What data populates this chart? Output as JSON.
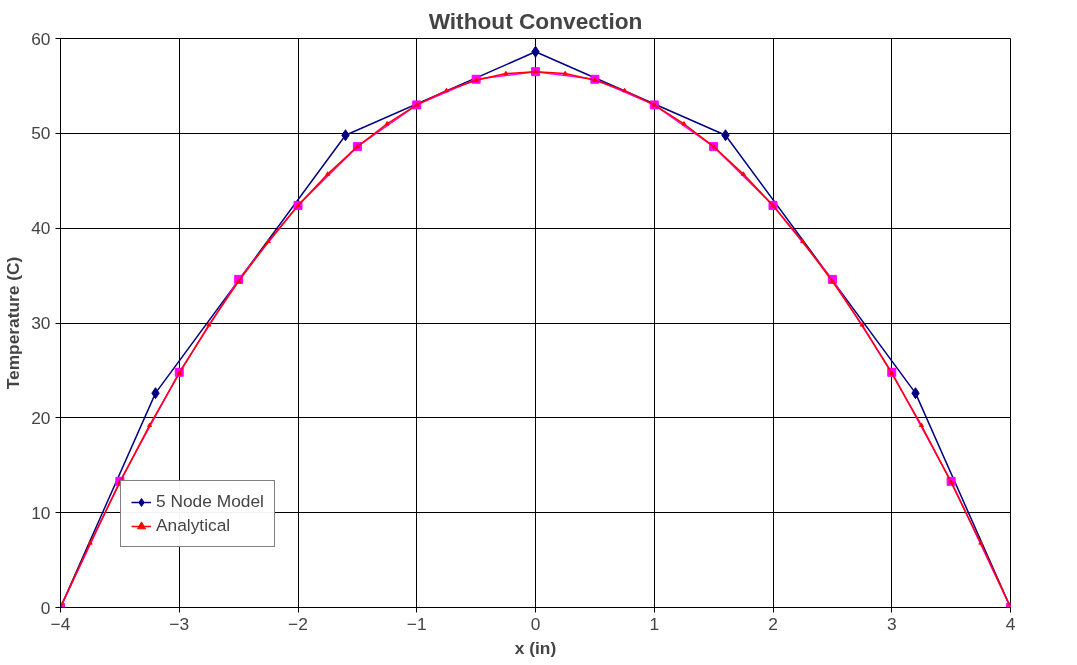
{
  "chart_data": {
    "type": "line",
    "title": "Without Convection",
    "xlabel": "x (in)",
    "ylabel": "Temperature (C)",
    "xlim": [
      -4,
      4
    ],
    "xticks": [
      -4,
      -3,
      -2,
      -1,
      0,
      1,
      2,
      3,
      4
    ],
    "ylim": [
      0,
      60
    ],
    "yticks": [
      0,
      10,
      20,
      30,
      40,
      50,
      60
    ],
    "grid": true,
    "legend": "bottom left",
    "series": [
      {
        "name": "5 Node Model",
        "color": "#000080",
        "marker": "diamond",
        "x": [
          -4,
          -3.2,
          -1.6,
          0,
          1.6,
          3.2,
          4
        ],
        "values": [
          0,
          22.6,
          49.8,
          58.6,
          49.8,
          22.6,
          0
        ]
      },
      {
        "color": "#ff00ff",
        "marker": "square",
        "x": [
          -4,
          -3.5,
          -3,
          -2.5,
          -2,
          -1.5,
          -1,
          -0.5,
          0,
          0.5,
          1,
          1.5,
          2,
          2.5,
          3,
          3.5,
          4
        ],
        "values": [
          0,
          13.3,
          24.8,
          34.6,
          42.4,
          48.6,
          53.0,
          55.7,
          56.5,
          55.7,
          53.0,
          48.6,
          42.4,
          34.6,
          24.8,
          13.3,
          0
        ]
      },
      {
        "name": "Analytical",
        "color": "#ff0000",
        "marker": "triangle",
        "x": [
          -4,
          -3.75,
          -3.5,
          -3.25,
          -3,
          -2.75,
          -2.5,
          -2.25,
          -2,
          -1.75,
          -1.5,
          -1.25,
          -1,
          -0.75,
          -0.5,
          -0.25,
          0,
          0.25,
          0.5,
          0.75,
          1,
          1.25,
          1.5,
          1.75,
          2,
          2.25,
          2.5,
          2.75,
          3,
          3.25,
          3.5,
          3.75,
          4
        ],
        "values": [
          0,
          6.8,
          13.2,
          19.2,
          24.7,
          29.8,
          34.4,
          38.6,
          42.4,
          45.7,
          48.6,
          51.0,
          53.0,
          54.5,
          55.6,
          56.3,
          56.5,
          56.3,
          55.6,
          54.5,
          53.0,
          51.0,
          48.6,
          45.7,
          42.4,
          38.6,
          34.4,
          29.8,
          24.7,
          19.2,
          13.2,
          6.8,
          0
        ]
      }
    ]
  }
}
